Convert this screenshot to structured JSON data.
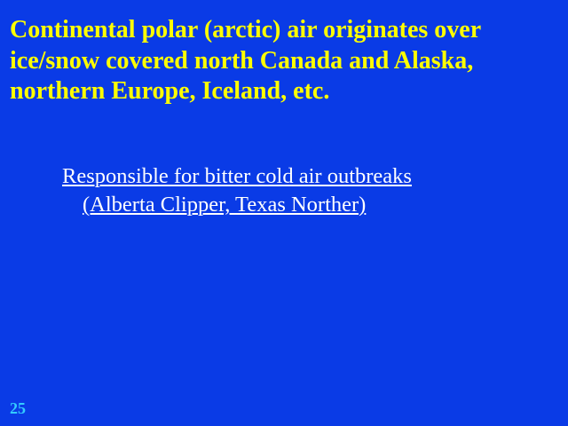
{
  "slide": {
    "title_lines": [
      "Continental polar (arctic) air originates over",
      "ice/snow covered north Canada and Alaska,",
      "northern Europe, Iceland, etc."
    ],
    "bullet_lines": [
      "Responsible for bitter cold air outbreaks",
      "(Alberta Clipper, Texas Norther)"
    ],
    "slide_number": "25"
  },
  "colors": {
    "background": "#0a3be6",
    "title": "#ffff00",
    "body_text": "#ffffff",
    "slide_number": "#33ccff"
  }
}
